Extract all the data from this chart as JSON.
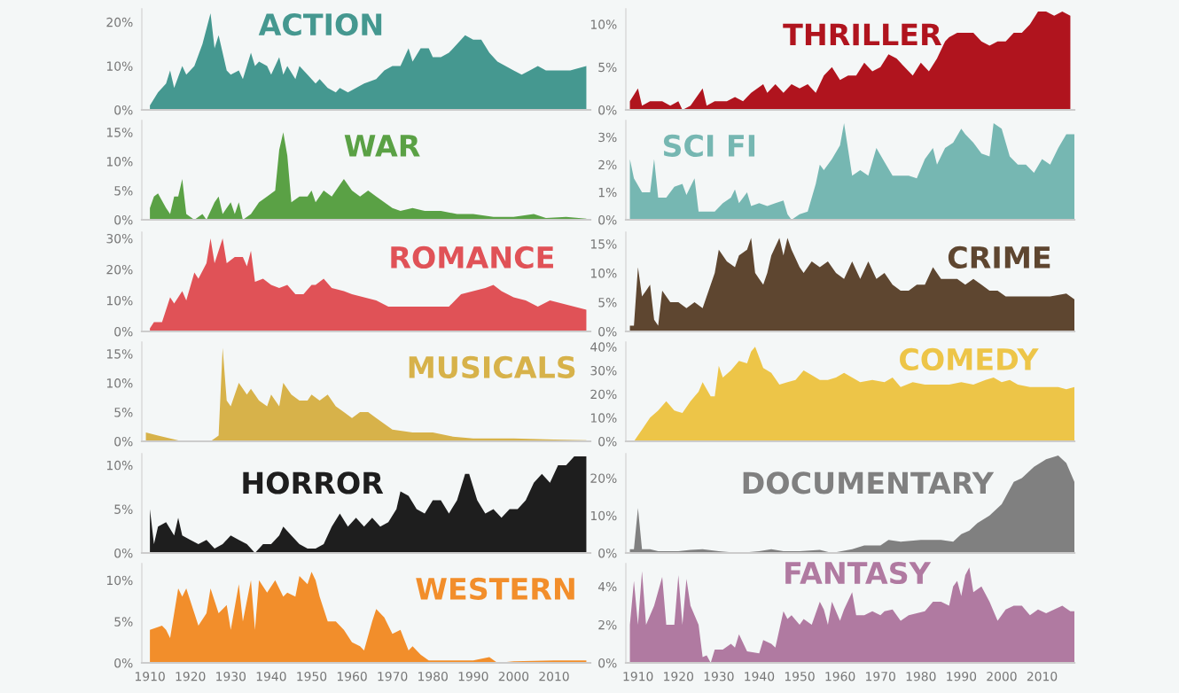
{
  "chart_data": [
    {
      "type": "area",
      "title": "ACTION",
      "x": [
        1910,
        1912,
        1914,
        1915,
        1916,
        1918,
        1919,
        1921,
        1923,
        1925,
        1926,
        1927,
        1929,
        1930,
        1932,
        1933,
        1935,
        1936,
        1937,
        1939,
        1940,
        1942,
        1943,
        1944,
        1946,
        1947,
        1949,
        1951,
        1952,
        1954,
        1956,
        1957,
        1959,
        1961,
        1963,
        1966,
        1968,
        1970,
        1972,
        1974,
        1975,
        1977,
        1979,
        1980,
        1982,
        1984,
        1986,
        1988,
        1990,
        1992,
        1994,
        1996,
        1998,
        2000,
        2002,
        2004,
        2006,
        2008,
        2010,
        2014,
        2018
      ],
      "series": [
        {
          "color": "#459890",
          "values": [
            1,
            4,
            6,
            9,
            5,
            10,
            8,
            10,
            15,
            22,
            14,
            17,
            9,
            8,
            9,
            7,
            13,
            10,
            11,
            10,
            8,
            12,
            8,
            10,
            7,
            10,
            8,
            6,
            7,
            5,
            4,
            5,
            4,
            5,
            6,
            7,
            9,
            10,
            10,
            14,
            11,
            14,
            14,
            12,
            12,
            13,
            15,
            17,
            16,
            16,
            13,
            11,
            10,
            9,
            8,
            9,
            10,
            9,
            9,
            9,
            10
          ]
        }
      ],
      "xlim": [
        1908,
        2019
      ],
      "ylim": [
        0,
        23
      ],
      "yticks": [
        {
          "value": 0,
          "label": "0%"
        },
        {
          "value": 10,
          "label": "10%"
        },
        {
          "value": 20,
          "label": "20%"
        }
      ],
      "tick_labels": "y"
    },
    {
      "type": "area",
      "title": "THRILLER",
      "x": [
        1908,
        1910,
        1911,
        1913,
        1916,
        1918,
        1920,
        1921,
        1923,
        1926,
        1927,
        1929,
        1932,
        1934,
        1936,
        1938,
        1941,
        1942,
        1944,
        1946,
        1948,
        1950,
        1952,
        1954,
        1956,
        1958,
        1960,
        1962,
        1964,
        1966,
        1968,
        1970,
        1972,
        1974,
        1976,
        1978,
        1980,
        1982,
        1984,
        1986,
        1987,
        1989,
        1991,
        1993,
        1995,
        1997,
        1999,
        2001,
        2003,
        2005,
        2007,
        2009,
        2011,
        2013,
        2015,
        2017
      ],
      "series": [
        {
          "color": "#b0141e",
          "values": [
            1,
            2.5,
            0.5,
            1,
            1,
            0.5,
            1,
            0,
            0.5,
            2.5,
            0.5,
            1,
            1,
            1.5,
            1,
            2,
            3,
            2,
            3,
            2,
            3,
            2.5,
            3,
            2,
            4,
            5,
            3.5,
            4,
            4,
            5.5,
            4.5,
            5,
            6.5,
            6,
            5,
            4,
            5.5,
            4.5,
            6,
            8,
            8.5,
            9,
            9,
            9,
            8,
            7.5,
            8,
            8,
            9,
            9,
            10,
            11.5,
            11.5,
            11,
            11.5,
            11
          ]
        }
      ],
      "xlim": [
        1907,
        2018
      ],
      "ylim": [
        0,
        11.8
      ],
      "yticks": [
        {
          "value": 0,
          "label": "0%"
        },
        {
          "value": 5,
          "label": "5%"
        },
        {
          "value": 10,
          "label": "10%"
        }
      ],
      "tick_labels": "y"
    },
    {
      "type": "area",
      "title": "WAR",
      "x": [
        1910,
        1911,
        1912,
        1914,
        1915,
        1916,
        1917,
        1918,
        1919,
        1921,
        1923,
        1924,
        1926,
        1927,
        1928,
        1929,
        1930,
        1931,
        1932,
        1933,
        1935,
        1937,
        1939,
        1941,
        1942,
        1943,
        1944,
        1945,
        1947,
        1949,
        1950,
        1951,
        1953,
        1955,
        1957,
        1958,
        1960,
        1962,
        1964,
        1966,
        1968,
        1970,
        1972,
        1975,
        1978,
        1982,
        1986,
        1990,
        1995,
        2000,
        2005,
        2008,
        2013,
        2018
      ],
      "series": [
        {
          "color": "#5aa145",
          "values": [
            2,
            4,
            4.5,
            2,
            1,
            4,
            4,
            7,
            1,
            0,
            1,
            0,
            3,
            4,
            1,
            2,
            3,
            1,
            3,
            0,
            1,
            3,
            4,
            5,
            12,
            15,
            11,
            3,
            4,
            4,
            5,
            3,
            5,
            4,
            6,
            7,
            5,
            4,
            5,
            4,
            3,
            2,
            1.5,
            2,
            1.5,
            1.5,
            1,
            1,
            0.5,
            0.5,
            1,
            0.3,
            0.5,
            0.2
          ]
        }
      ],
      "xlim": [
        1908,
        2019
      ],
      "ylim": [
        0,
        17
      ],
      "yticks": [
        {
          "value": 0,
          "label": "0%"
        },
        {
          "value": 5,
          "label": "5%"
        },
        {
          "value": 10,
          "label": "10%"
        },
        {
          "value": 15,
          "label": "15%"
        }
      ],
      "tick_labels": "y"
    },
    {
      "type": "area",
      "title": "SCI FI",
      "x": [
        1908,
        1909,
        1911,
        1913,
        1914,
        1915,
        1917,
        1919,
        1921,
        1922,
        1924,
        1925,
        1927,
        1929,
        1931,
        1933,
        1934,
        1935,
        1937,
        1938,
        1940,
        1942,
        1944,
        1946,
        1947,
        1948,
        1950,
        1952,
        1954,
        1955,
        1956,
        1958,
        1960,
        1961,
        1963,
        1965,
        1967,
        1969,
        1971,
        1973,
        1975,
        1977,
        1979,
        1981,
        1983,
        1984,
        1986,
        1988,
        1990,
        1991,
        1993,
        1995,
        1997,
        1998,
        2000,
        2002,
        2004,
        2006,
        2008,
        2010,
        2012,
        2014,
        2016,
        2018
      ],
      "series": [
        {
          "color": "#76b7b2",
          "values": [
            2.2,
            1.5,
            1.0,
            1.0,
            2.2,
            0.8,
            0.8,
            1.2,
            1.3,
            0.9,
            1.5,
            0.3,
            0.3,
            0.3,
            0.6,
            0.8,
            1.1,
            0.6,
            1.0,
            0.5,
            0.6,
            0.5,
            0.6,
            0.7,
            0.2,
            0,
            0.2,
            0.3,
            1.3,
            2.0,
            1.8,
            2.2,
            2.7,
            3.5,
            1.6,
            1.8,
            1.6,
            2.6,
            2.1,
            1.6,
            1.6,
            1.6,
            1.5,
            2.2,
            2.6,
            2.0,
            2.6,
            2.8,
            3.3,
            3.1,
            2.8,
            2.4,
            2.3,
            3.5,
            3.3,
            2.3,
            2.0,
            2.0,
            1.7,
            2.2,
            2.0,
            2.6,
            3.1,
            3.1
          ]
        }
      ],
      "xlim": [
        1907,
        2018
      ],
      "ylim": [
        0,
        3.6
      ],
      "yticks": [
        {
          "value": 0,
          "label": "0%"
        },
        {
          "value": 1,
          "label": "1%"
        },
        {
          "value": 2,
          "label": "2%"
        },
        {
          "value": 3,
          "label": "3%"
        }
      ],
      "tick_labels": "y"
    },
    {
      "type": "area",
      "title": "ROMANCE",
      "x": [
        1910,
        1911,
        1913,
        1915,
        1916,
        1918,
        1919,
        1921,
        1922,
        1924,
        1925,
        1926,
        1928,
        1929,
        1931,
        1933,
        1934,
        1935,
        1936,
        1938,
        1940,
        1942,
        1944,
        1946,
        1948,
        1950,
        1951,
        1953,
        1955,
        1958,
        1960,
        1963,
        1966,
        1969,
        1972,
        1975,
        1978,
        1981,
        1984,
        1987,
        1990,
        1993,
        1995,
        1997,
        2000,
        2003,
        2006,
        2009,
        2012,
        2015,
        2018
      ],
      "series": [
        {
          "color": "#e05257",
          "values": [
            1,
            3,
            3,
            11,
            9,
            13,
            10,
            19,
            17,
            22,
            30,
            22,
            30,
            22,
            24,
            24,
            21,
            26,
            16,
            17,
            15,
            14,
            15,
            12,
            12,
            15,
            15,
            17,
            14,
            13,
            12,
            11,
            10,
            8,
            8,
            8,
            8,
            8,
            8,
            12,
            13,
            14,
            15,
            13,
            11,
            10,
            8,
            10,
            9,
            8,
            7
          ]
        }
      ],
      "xlim": [
        1908,
        2019
      ],
      "ylim": [
        0,
        32
      ],
      "yticks": [
        {
          "value": 0,
          "label": "0%"
        },
        {
          "value": 10,
          "label": "10%"
        },
        {
          "value": 20,
          "label": "20%"
        },
        {
          "value": 30,
          "label": "30%"
        }
      ],
      "tick_labels": "y"
    },
    {
      "type": "area",
      "title": "CRIME",
      "x": [
        1908,
        1909,
        1910,
        1911,
        1912,
        1913,
        1914,
        1915,
        1916,
        1918,
        1920,
        1922,
        1924,
        1926,
        1928,
        1929,
        1930,
        1932,
        1934,
        1935,
        1937,
        1938,
        1939,
        1940,
        1941,
        1942,
        1943,
        1945,
        1946,
        1947,
        1948,
        1950,
        1951,
        1953,
        1955,
        1957,
        1959,
        1961,
        1963,
        1965,
        1967,
        1969,
        1971,
        1973,
        1975,
        1977,
        1979,
        1981,
        1983,
        1985,
        1987,
        1989,
        1991,
        1993,
        1995,
        1997,
        1999,
        2001,
        2003,
        2005,
        2008,
        2012,
        2016,
        2018
      ],
      "series": [
        {
          "color": "#5e4630",
          "values": [
            1,
            1,
            11,
            6,
            7,
            8,
            2,
            1,
            7,
            5,
            5,
            4,
            5,
            4,
            8,
            10,
            14,
            12,
            11,
            13,
            14,
            16,
            10,
            9,
            8,
            10,
            13,
            16,
            13,
            16,
            14,
            11,
            10,
            12,
            11,
            12,
            10,
            9,
            12,
            9,
            12,
            9,
            10,
            8,
            7,
            7,
            8,
            8,
            11,
            9,
            9,
            9,
            8,
            9,
            8,
            7,
            7,
            6,
            6,
            6,
            6,
            6,
            6.5,
            5.5
          ]
        }
      ],
      "xlim": [
        1907,
        2018
      ],
      "ylim": [
        0,
        17
      ],
      "yticks": [
        {
          "value": 0,
          "label": "0%"
        },
        {
          "value": 5,
          "label": "5%"
        },
        {
          "value": 10,
          "label": "10%"
        },
        {
          "value": 15,
          "label": "15%"
        }
      ],
      "tick_labels": "y"
    },
    {
      "type": "area",
      "title": "MUSICALS",
      "x": [
        1909,
        1912,
        1915,
        1918,
        1925,
        1927,
        1928,
        1929,
        1930,
        1931,
        1932,
        1934,
        1935,
        1937,
        1939,
        1940,
        1942,
        1943,
        1945,
        1947,
        1949,
        1950,
        1952,
        1954,
        1956,
        1958,
        1960,
        1962,
        1964,
        1966,
        1968,
        1970,
        1975,
        1980,
        1985,
        1990,
        2000,
        2010,
        2018
      ],
      "series": [
        {
          "color": "#d7b24a",
          "values": [
            1.5,
            1,
            0.5,
            0,
            0,
            1,
            16,
            7,
            6,
            8,
            10,
            8,
            9,
            7,
            6,
            8,
            6,
            10,
            8,
            7,
            7,
            8,
            7,
            8,
            6,
            5,
            4,
            5,
            5,
            4,
            3,
            2,
            1.5,
            1.5,
            0.8,
            0.5,
            0.5,
            0.3,
            0.2
          ]
        }
      ],
      "xlim": [
        1908,
        2019
      ],
      "ylim": [
        0,
        17
      ],
      "yticks": [
        {
          "value": 0,
          "label": "0%"
        },
        {
          "value": 5,
          "label": "5%"
        },
        {
          "value": 10,
          "label": "10%"
        },
        {
          "value": 15,
          "label": "15%"
        }
      ],
      "tick_labels": "y"
    },
    {
      "type": "area",
      "title": "COMEDY",
      "x": [
        1908,
        1909,
        1911,
        1913,
        1915,
        1917,
        1919,
        1921,
        1923,
        1925,
        1926,
        1928,
        1929,
        1930,
        1931,
        1933,
        1935,
        1937,
        1938,
        1939,
        1941,
        1943,
        1945,
        1947,
        1949,
        1951,
        1953,
        1955,
        1957,
        1959,
        1961,
        1963,
        1965,
        1968,
        1971,
        1973,
        1975,
        1978,
        1981,
        1984,
        1987,
        1990,
        1993,
        1996,
        1998,
        2000,
        2002,
        2004,
        2007,
        2010,
        2014,
        2016,
        2018
      ],
      "series": [
        {
          "color": "#edc548",
          "values": [
            0,
            0,
            5,
            10,
            13,
            17,
            13,
            12,
            17,
            21,
            25,
            19,
            19,
            32,
            27,
            30,
            34,
            33,
            38,
            40,
            31,
            29,
            24,
            25,
            26,
            30,
            28,
            26,
            26,
            27,
            29,
            27,
            25,
            26,
            25,
            27,
            23,
            25,
            24,
            24,
            24,
            25,
            24,
            26,
            27,
            25,
            26,
            24,
            23,
            23,
            23,
            22,
            23
          ]
        }
      ],
      "xlim": [
        1907,
        2018
      ],
      "ylim": [
        0,
        42
      ],
      "yticks": [
        {
          "value": 0,
          "label": "0%"
        },
        {
          "value": 10,
          "label": "10%"
        },
        {
          "value": 20,
          "label": "20%"
        },
        {
          "value": 30,
          "label": "30%"
        },
        {
          "value": 40,
          "label": "40%"
        }
      ],
      "tick_labels": "y"
    },
    {
      "type": "area",
      "title": "HORROR",
      "x": [
        1910,
        1911,
        1912,
        1914,
        1916,
        1917,
        1918,
        1920,
        1922,
        1924,
        1926,
        1928,
        1930,
        1932,
        1934,
        1936,
        1938,
        1940,
        1942,
        1943,
        1945,
        1947,
        1949,
        1951,
        1953,
        1955,
        1957,
        1959,
        1961,
        1963,
        1965,
        1967,
        1969,
        1971,
        1972,
        1974,
        1976,
        1978,
        1980,
        1982,
        1984,
        1986,
        1988,
        1989,
        1991,
        1993,
        1995,
        1997,
        1999,
        2001,
        2003,
        2005,
        2007,
        2009,
        2011,
        2013,
        2015,
        2018
      ],
      "series": [
        {
          "color": "#1e1e1e",
          "values": [
            5,
            1,
            3,
            3.5,
            2,
            4,
            2,
            1.5,
            1,
            1.5,
            0.5,
            1,
            2,
            1.5,
            1,
            0,
            1,
            1,
            2,
            3,
            2,
            1,
            0.5,
            0.5,
            1,
            3,
            4.5,
            3,
            4,
            3,
            4,
            3,
            3.5,
            5,
            7,
            6.5,
            5,
            4.5,
            6,
            6,
            4.5,
            6,
            9,
            9,
            6,
            4.5,
            5,
            4,
            5,
            5,
            6,
            8,
            9,
            8,
            10,
            10,
            11,
            11
          ]
        }
      ],
      "xlim": [
        1908,
        2019
      ],
      "ylim": [
        0,
        11.3
      ],
      "yticks": [
        {
          "value": 0,
          "label": "0%"
        },
        {
          "value": 5,
          "label": "5%"
        },
        {
          "value": 10,
          "label": "10%"
        }
      ],
      "tick_labels": "y"
    },
    {
      "type": "area",
      "title": "DOCUMENTARY",
      "x": [
        1908,
        1909,
        1910,
        1911,
        1913,
        1915,
        1920,
        1923,
        1926,
        1930,
        1935,
        1940,
        1943,
        1946,
        1950,
        1955,
        1958,
        1963,
        1966,
        1970,
        1972,
        1975,
        1980,
        1985,
        1988,
        1990,
        1992,
        1994,
        1997,
        2000,
        2003,
        2005,
        2008,
        2011,
        2014,
        2016,
        2018
      ],
      "series": [
        {
          "color": "#808080",
          "values": [
            1,
            1,
            12,
            1,
            1,
            0.5,
            0.5,
            0.8,
            1,
            0.5,
            0,
            0.5,
            1,
            0.5,
            0.5,
            0.8,
            0,
            1,
            2,
            2,
            3.5,
            3,
            3.5,
            3.5,
            3,
            5,
            6,
            8,
            10,
            13,
            19,
            20,
            23,
            25,
            26,
            24,
            19
          ]
        }
      ],
      "xlim": [
        1907,
        2018
      ],
      "ylim": [
        0,
        26.5
      ],
      "yticks": [
        {
          "value": 0,
          "label": "0%"
        },
        {
          "value": 10,
          "label": "10%"
        },
        {
          "value": 20,
          "label": "20%"
        }
      ],
      "tick_labels": "y"
    },
    {
      "type": "area",
      "title": "WESTERN",
      "x": [
        1910,
        1913,
        1914,
        1915,
        1917,
        1918,
        1919,
        1921,
        1922,
        1924,
        1925,
        1927,
        1929,
        1930,
        1932,
        1933,
        1935,
        1936,
        1937,
        1939,
        1941,
        1943,
        1944,
        1946,
        1947,
        1949,
        1950,
        1951,
        1952,
        1954,
        1956,
        1958,
        1960,
        1962,
        1963,
        1965,
        1966,
        1968,
        1970,
        1972,
        1974,
        1975,
        1977,
        1979,
        1985,
        1990,
        1994,
        1996,
        2000,
        2010,
        2018
      ],
      "series": [
        {
          "color": "#f28e2b",
          "values": [
            4,
            4.5,
            4,
            3,
            9,
            8,
            9,
            6,
            4.5,
            6,
            9,
            6,
            7,
            4,
            9.5,
            5,
            10,
            4,
            10,
            8.5,
            10,
            8,
            8.5,
            8,
            10.5,
            9.5,
            11,
            10,
            8,
            5,
            5,
            4,
            2.5,
            2,
            1.5,
            5,
            6.5,
            5.5,
            3.5,
            4,
            1.5,
            2,
            1,
            0.3,
            0.3,
            0.3,
            0.7,
            0,
            0.2,
            0.3,
            0.3
          ]
        }
      ],
      "xlim": [
        1908,
        2019
      ],
      "ylim": [
        0,
        12
      ],
      "xticks": [
        1910,
        1920,
        1930,
        1940,
        1950,
        1960,
        1970,
        1980,
        1990,
        2000,
        2010
      ],
      "yticks": [
        {
          "value": 0,
          "label": "0%"
        },
        {
          "value": 5,
          "label": "5%"
        },
        {
          "value": 10,
          "label": "10%"
        }
      ]
    },
    {
      "type": "area",
      "title": "FANTASY",
      "x": [
        1908,
        1909,
        1910,
        1911,
        1912,
        1914,
        1916,
        1917,
        1919,
        1920,
        1921,
        1922,
        1923,
        1924,
        1925,
        1926,
        1927,
        1928,
        1929,
        1931,
        1933,
        1934,
        1935,
        1937,
        1940,
        1941,
        1943,
        1944,
        1946,
        1947,
        1948,
        1950,
        1951,
        1953,
        1955,
        1956,
        1957,
        1958,
        1960,
        1961,
        1963,
        1964,
        1966,
        1968,
        1970,
        1971,
        1973,
        1975,
        1977,
        1979,
        1981,
        1983,
        1985,
        1987,
        1988,
        1989,
        1990,
        1991,
        1992,
        1993,
        1995,
        1997,
        1999,
        2001,
        2003,
        2005,
        2007,
        2009,
        2011,
        2013,
        2015,
        2017,
        2018
      ],
      "series": [
        {
          "color": "#b07aa1",
          "values": [
            2,
            4.3,
            2,
            4.8,
            2,
            3,
            4.5,
            2,
            2,
            4.6,
            2,
            4.4,
            3,
            2.5,
            2,
            0.3,
            0.4,
            0,
            0.7,
            0.7,
            1,
            0.8,
            1.5,
            0.6,
            0.5,
            1.2,
            1,
            0.8,
            2.7,
            2.3,
            2.5,
            2,
            2.3,
            2,
            3.2,
            2.8,
            2,
            3.2,
            2.2,
            2.8,
            3.7,
            2.5,
            2.5,
            2.7,
            2.5,
            2.7,
            2.8,
            2.2,
            2.5,
            2.6,
            2.7,
            3.2,
            3.2,
            3.0,
            4.0,
            4.3,
            3.5,
            4.6,
            5.0,
            3.7,
            4,
            3.2,
            2.2,
            2.8,
            3.0,
            3.0,
            2.5,
            2.8,
            2.6,
            2.8,
            3.0,
            2.7,
            2.7
          ]
        }
      ],
      "xlim": [
        1907,
        2018
      ],
      "ylim": [
        0,
        5.2
      ],
      "xticks": [
        1910,
        1920,
        1930,
        1940,
        1950,
        1960,
        1970,
        1980,
        1990,
        2000,
        2010
      ],
      "yticks": [
        {
          "value": 0,
          "label": "0%"
        },
        {
          "value": 2,
          "label": "2%"
        },
        {
          "value": 4,
          "label": "4%"
        }
      ]
    }
  ]
}
